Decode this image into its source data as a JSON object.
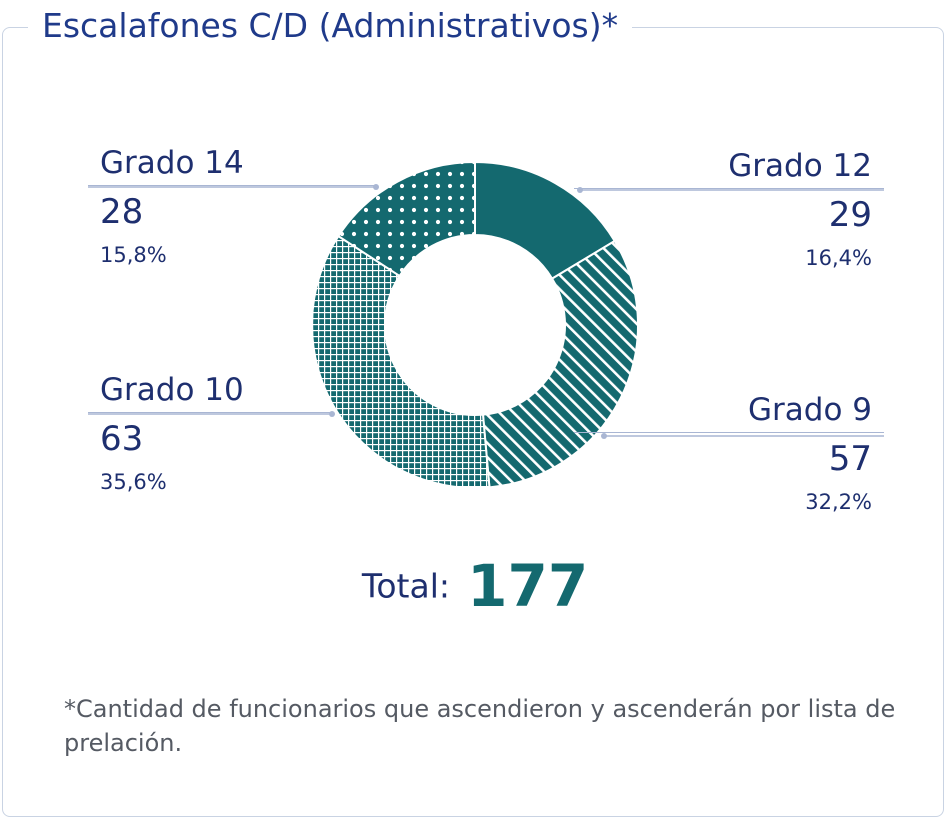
{
  "title": "Escalafones C/D (Administrativos)*",
  "colors": {
    "accent": "#14696f",
    "text": "#1e2f6f",
    "border": "#c9d3e3"
  },
  "chart_data": {
    "type": "pie",
    "donut": true,
    "categories": [
      "Grado 12",
      "Grado 9",
      "Grado 10",
      "Grado 14"
    ],
    "values": [
      29,
      57,
      63,
      28
    ],
    "percentages": [
      "16,4%",
      "32,2%",
      "35,6%",
      "15,8%"
    ],
    "patterns": [
      "solid",
      "diagonal-stripes",
      "grid",
      "dots"
    ],
    "total_label": "Total:",
    "total": 177
  },
  "labels": {
    "grado12": {
      "name": "Grado 12",
      "count": "29",
      "pct": "16,4%"
    },
    "grado9": {
      "name": "Grado 9",
      "count": "57",
      "pct": "32,2%"
    },
    "grado10": {
      "name": "Grado 10",
      "count": "63",
      "pct": "35,6%"
    },
    "grado14": {
      "name": "Grado 14",
      "count": "28",
      "pct": "15,8%"
    }
  },
  "total": {
    "label": "Total:",
    "value": "177"
  },
  "footnote": "*Cantidad de funcionarios que ascendieron y ascenderán por lista de prelación."
}
